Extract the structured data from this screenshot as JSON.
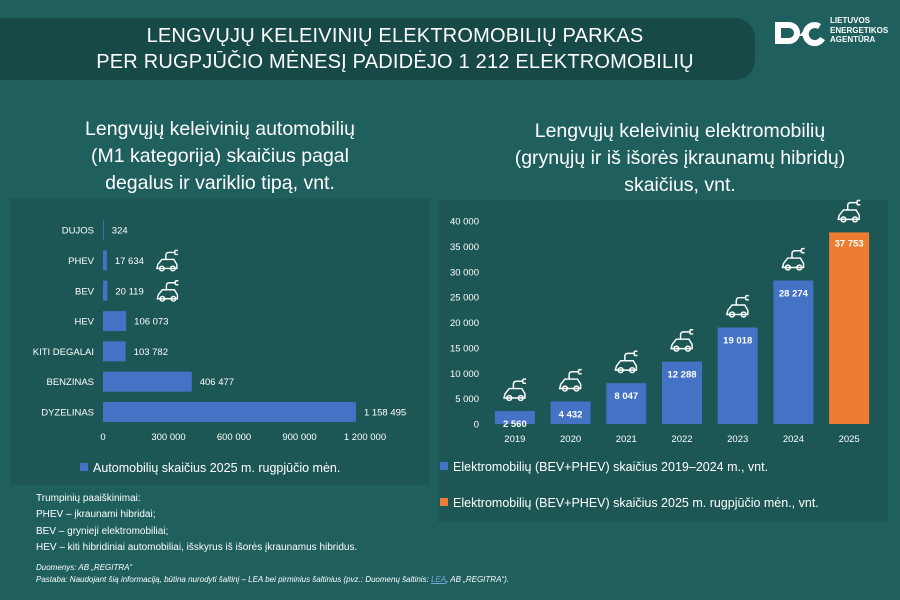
{
  "header": {
    "title_line1": "LENGVŲJŲ KELEIVINIŲ ELEKTROMOBILIŲ PARKAS",
    "title_line2": "PER RUGPJŪČIO MĖNESĮ PADIDĖJO 1 212 ELEKTROMOBILIŲ",
    "logo_lines": [
      "LIETUVOS",
      "ENERGETIKOS",
      "AGENTŪRA"
    ]
  },
  "left_chart": {
    "title_lines": [
      "Lengvųjų keleivinių automobilių",
      "(M1 kategorija) skaičius pagal",
      "degalus ir variklio tipą, vnt."
    ],
    "legend": "Automobilių skaičius 2025 m. rugpjūčio mėn."
  },
  "right_chart": {
    "title_lines": [
      "Lengvųjų keleivinių elektromobilių",
      "(grynųjų ir iš išorės įkraunamų hibridų)",
      "skaičius, vnt."
    ],
    "legend_1": "Elektromobilių (BEV+PHEV) skaičius 2019–2024 m., vnt.",
    "legend_2": "Elektromobilių (BEV+PHEV) skaičius 2025 m. rugpjūčio mėn., vnt."
  },
  "notes": {
    "heading": "Trumpinių paaiškinimai:",
    "lines": [
      "PHEV – įkraunami hibridai;",
      "BEV – grynieji elektromobiliai;",
      "HEV – kiti hibridiniai automobiliai, išskyrus iš išorės įkraunamus hibridus."
    ]
  },
  "source": {
    "line1": "Duomenys: AB „REGITRA“",
    "line2_pre": "Pastaba: Naudojant šią informaciją, būtina nurodyti šaltinį – LEA bei pirminius šaltinius (pvz.: Duomenų šaltinis: ",
    "line2_link": "LEA",
    "line2_post": ", AB „REGITRA“)."
  },
  "colors": {
    "background": "#1f5f5d",
    "banner": "#174947",
    "bar_blue": "#4472c4",
    "bar_orange": "#ed7d31"
  },
  "chart_data": [
    {
      "type": "bar",
      "orientation": "horizontal",
      "categories": [
        "DUJOS",
        "PHEV",
        "BEV",
        "HEV",
        "KITI DEGALAI",
        "BENZINAS",
        "DYZELINAS"
      ],
      "values": [
        324,
        17634,
        20119,
        106073,
        103782,
        406477,
        1158495
      ],
      "value_labels": [
        "324",
        "17 634",
        "20 119",
        "106 073",
        "103 782",
        "406 477",
        "1 158 495"
      ],
      "x_ticks": [
        0,
        300000,
        600000,
        900000,
        1200000
      ],
      "x_tick_labels": [
        "0",
        "300 000",
        "600 000",
        "900 000",
        "1 200 000"
      ],
      "xlim": [
        0,
        1200000
      ],
      "series": [
        {
          "name": "Automobilių skaičius 2025 m. rugpjūčio mėn."
        }
      ],
      "car_icons_on": [
        "PHEV",
        "BEV"
      ]
    },
    {
      "type": "bar",
      "categories": [
        "2019",
        "2020",
        "2021",
        "2022",
        "2023",
        "2024",
        "2025"
      ],
      "values": [
        2560,
        4432,
        8047,
        12288,
        19018,
        28274,
        37753
      ],
      "value_labels": [
        "2 560",
        "4 432",
        "8 047",
        "12 288",
        "19 018",
        "28 274",
        "37 753"
      ],
      "y_ticks": [
        0,
        5000,
        10000,
        15000,
        20000,
        25000,
        30000,
        35000,
        40000
      ],
      "y_tick_labels": [
        "0",
        "5 000",
        "10 000",
        "15 000",
        "20 000",
        "25 000",
        "30 000",
        "35 000",
        "40 000"
      ],
      "ylim": [
        0,
        40000
      ],
      "series": [
        {
          "name": "Elektromobilių (BEV+PHEV) skaičius 2019–2024 m., vnt.",
          "color": "#4472c4"
        },
        {
          "name": "Elektromobilių (BEV+PHEV) skaičius 2025 m. rugpjūčio mėn., vnt.",
          "color": "#ed7d31"
        }
      ],
      "highlight_index": 6
    }
  ]
}
